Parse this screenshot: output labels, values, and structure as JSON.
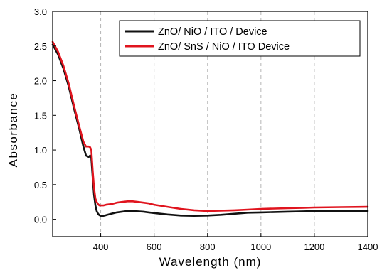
{
  "chart_data": {
    "type": "line",
    "xlabel": "Wavelength (nm)",
    "ylabel": "Absorbance",
    "xlim": [
      220,
      1400
    ],
    "ylim": [
      -0.25,
      3.0
    ],
    "xticks": [
      400,
      600,
      800,
      1000,
      1200,
      1400
    ],
    "xtick_labels": [
      "400",
      "600",
      "800",
      "1000",
      "1200",
      "1400"
    ],
    "yticks": [
      0.0,
      0.5,
      1.0,
      1.5,
      2.0,
      2.5,
      3.0
    ],
    "ytick_labels": [
      "0.0",
      "0.5",
      "1.0",
      "1.5",
      "2.0",
      "2.5",
      "3.0"
    ],
    "grid": "vertical dashed",
    "legend_position": "top-right",
    "series": [
      {
        "name": "ZnO/ NiO / ITO / Device",
        "color": "#111111",
        "x": [
          220,
          240,
          260,
          280,
          300,
          320,
          335,
          345,
          355,
          360,
          365,
          370,
          375,
          380,
          385,
          390,
          395,
          400,
          410,
          420,
          440,
          460,
          480,
          500,
          520,
          540,
          560,
          580,
          600,
          650,
          700,
          750,
          800,
          850,
          900,
          950,
          1000,
          1050,
          1100,
          1160,
          1200,
          1300,
          1400
        ],
        "y": [
          2.52,
          2.38,
          2.18,
          1.92,
          1.6,
          1.3,
          1.05,
          0.92,
          0.9,
          0.92,
          0.88,
          0.6,
          0.35,
          0.2,
          0.12,
          0.08,
          0.06,
          0.05,
          0.05,
          0.06,
          0.08,
          0.1,
          0.11,
          0.12,
          0.12,
          0.115,
          0.11,
          0.1,
          0.09,
          0.07,
          0.055,
          0.05,
          0.055,
          0.065,
          0.08,
          0.095,
          0.1,
          0.105,
          0.11,
          0.115,
          0.12,
          0.12,
          0.12
        ]
      },
      {
        "name": "ZnO/ SnS / NiO / ITO Device",
        "color": "#e0141e",
        "x": [
          220,
          240,
          260,
          280,
          300,
          320,
          335,
          345,
          355,
          360,
          365,
          370,
          375,
          380,
          385,
          390,
          395,
          400,
          410,
          420,
          440,
          460,
          480,
          500,
          520,
          540,
          560,
          580,
          600,
          650,
          700,
          750,
          800,
          850,
          900,
          950,
          1000,
          1050,
          1100,
          1160,
          1200,
          1300,
          1400
        ],
        "y": [
          2.56,
          2.42,
          2.22,
          1.96,
          1.64,
          1.34,
          1.12,
          1.05,
          1.05,
          1.04,
          1.0,
          0.7,
          0.45,
          0.3,
          0.25,
          0.22,
          0.2,
          0.2,
          0.2,
          0.21,
          0.22,
          0.24,
          0.25,
          0.26,
          0.26,
          0.25,
          0.24,
          0.23,
          0.21,
          0.18,
          0.15,
          0.13,
          0.12,
          0.125,
          0.13,
          0.14,
          0.15,
          0.155,
          0.16,
          0.165,
          0.17,
          0.175,
          0.18
        ]
      }
    ]
  }
}
